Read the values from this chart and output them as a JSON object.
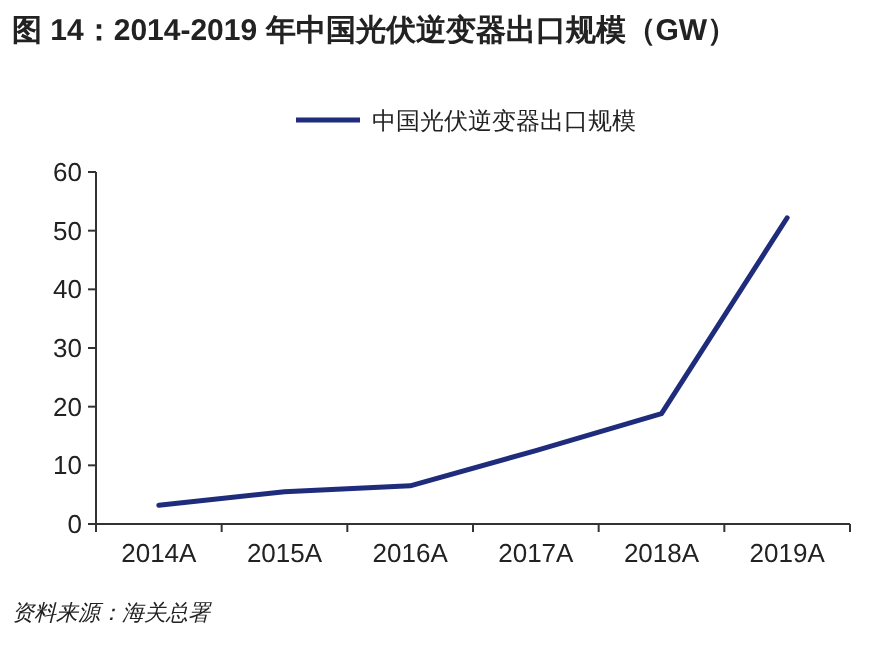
{
  "chart_data": {
    "type": "line",
    "title": "图 14：2014-2019 年中国光伏逆变器出口规模（GW）",
    "categories": [
      "2014A",
      "2015A",
      "2016A",
      "2017A",
      "2018A",
      "2019A"
    ],
    "series": [
      {
        "name": "中国光伏逆变器出口规模",
        "color": "#1f2c7c",
        "values": [
          3.2,
          5.5,
          6.5,
          12.5,
          18.8,
          52.2
        ]
      }
    ],
    "ylim": [
      0,
      60
    ],
    "yticks": [
      0,
      10,
      20,
      30,
      40,
      50,
      60
    ],
    "grid": false,
    "legend": "top",
    "marker": "none",
    "line_style": "solid",
    "annotations": [
      "资料来源：海关总署"
    ]
  }
}
